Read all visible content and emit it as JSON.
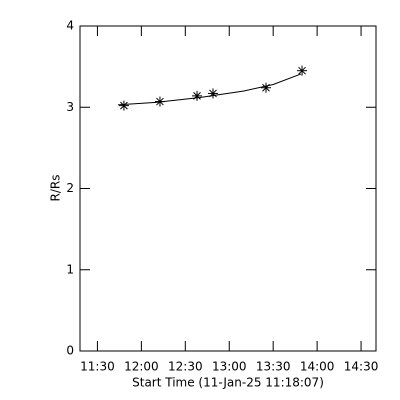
{
  "chart_data": {
    "type": "scatter",
    "xlabel": "Start Time (11-Jan-25 11:18:07)",
    "ylabel": "R/Rs",
    "xlim": [
      678.1,
      880.2
    ],
    "xticks": [
      {
        "value": 690,
        "label": "11:30"
      },
      {
        "value": 720,
        "label": "12:00"
      },
      {
        "value": 750,
        "label": "12:30"
      },
      {
        "value": 780,
        "label": "13:00"
      },
      {
        "value": 810,
        "label": "13:30"
      },
      {
        "value": 840,
        "label": "14:00"
      },
      {
        "value": 870,
        "label": "14:30"
      }
    ],
    "ylim": [
      0,
      4
    ],
    "yticks": [
      0,
      1,
      2,
      3,
      4
    ],
    "color": "#000000",
    "series": [
      {
        "mode": "markers",
        "marker": "asterisk",
        "x": [
          708.1,
          732.7,
          758.0,
          768.9,
          805.1,
          829.7
        ],
        "values": [
          3.02,
          3.07,
          3.14,
          3.17,
          3.24,
          3.45
        ]
      },
      {
        "mode": "line",
        "x": [
          704.0,
          730.0,
          760.0,
          790.0,
          810.0,
          829.0
        ],
        "values": [
          3.03,
          3.06,
          3.12,
          3.2,
          3.28,
          3.41
        ]
      }
    ]
  }
}
